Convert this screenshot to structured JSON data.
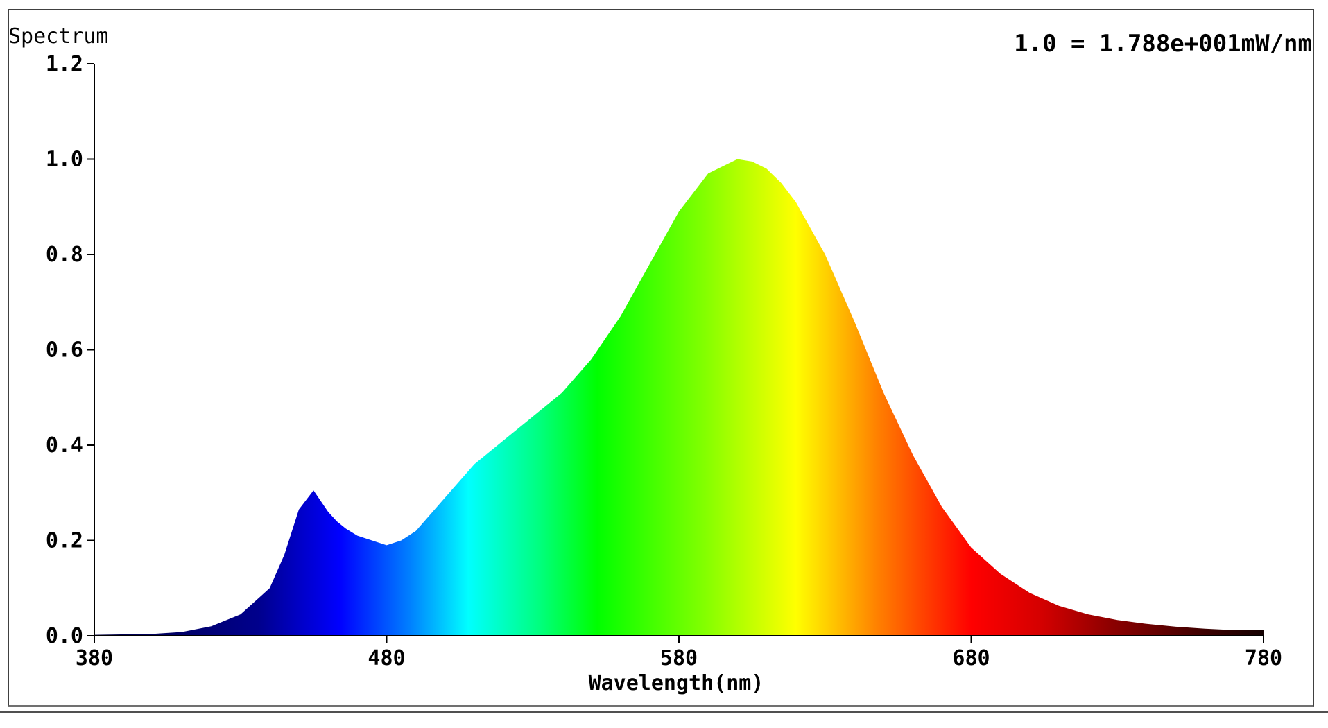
{
  "chart_data": {
    "type": "area",
    "title": "Spectrum",
    "annotation": "1.0 = 1.788e+001mW/nm",
    "xlabel": "Wavelength(nm)",
    "ylabel": "",
    "xlim": [
      380,
      780
    ],
    "ylim": [
      0,
      1.2
    ],
    "x_ticks": [
      380,
      480,
      580,
      680,
      780
    ],
    "x_tick_labels": [
      "380",
      "480",
      "580",
      "680",
      "780"
    ],
    "y_ticks": [
      0.0,
      0.2,
      0.4,
      0.6,
      0.8,
      1.0,
      1.2
    ],
    "y_tick_labels": [
      "0.0",
      "0.2",
      "0.4",
      "0.6",
      "0.8",
      "1.0",
      "1.2"
    ],
    "grid": false,
    "legend": "none",
    "fill": "visible-spectrum-gradient",
    "series": [
      {
        "x": [
          380,
          400,
          410,
          420,
          430,
          440,
          445,
          450,
          455,
          460,
          463,
          466,
          470,
          475,
          480,
          485,
          490,
          500,
          510,
          520,
          530,
          540,
          550,
          560,
          570,
          580,
          590,
          600,
          605,
          610,
          615,
          620,
          630,
          640,
          650,
          660,
          670,
          680,
          690,
          700,
          710,
          720,
          730,
          740,
          750,
          760,
          770,
          780
        ],
        "y": [
          0.002,
          0.004,
          0.008,
          0.02,
          0.045,
          0.1,
          0.17,
          0.265,
          0.305,
          0.26,
          0.24,
          0.225,
          0.21,
          0.2,
          0.19,
          0.2,
          0.22,
          0.29,
          0.36,
          0.41,
          0.46,
          0.51,
          0.58,
          0.67,
          0.78,
          0.89,
          0.97,
          1.0,
          0.995,
          0.98,
          0.95,
          0.91,
          0.8,
          0.66,
          0.51,
          0.38,
          0.27,
          0.185,
          0.13,
          0.09,
          0.063,
          0.045,
          0.033,
          0.025,
          0.019,
          0.015,
          0.012,
          0.012
        ]
      }
    ]
  },
  "colors": {
    "axis": "#000000",
    "frame": "#404040",
    "spectrum_stops": [
      "#000040",
      "#00008c",
      "#0000ff",
      "#0080ff",
      "#00ffff",
      "#00ff80",
      "#00ff00",
      "#80ff00",
      "#ffff00",
      "#ff8000",
      "#ff0000",
      "#d40000",
      "#8c0000",
      "#3c0000",
      "#140000"
    ]
  }
}
